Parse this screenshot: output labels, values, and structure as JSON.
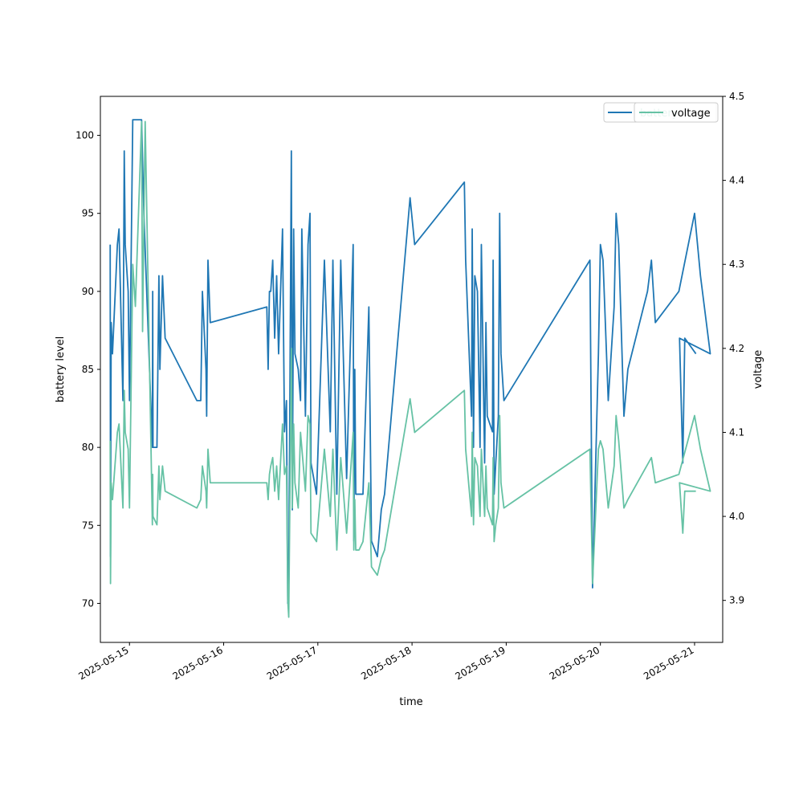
{
  "chart_data": {
    "type": "line",
    "xlabel": "time",
    "ylabel_left": "battery level",
    "ylabel_right": "voltage",
    "x_tick_labels": [
      "2025-05-15",
      "2025-05-16",
      "2025-05-17",
      "2025-05-18",
      "2025-05-19",
      "2025-05-20",
      "2025-05-21"
    ],
    "y_left_ticks": [
      70,
      75,
      80,
      85,
      90,
      95,
      100
    ],
    "y_left_lim": [
      67.5,
      102.5
    ],
    "y_right_ticks": [
      3.9,
      4.0,
      4.1,
      4.2,
      4.3,
      4.4,
      4.5
    ],
    "y_right_lim": [
      3.85,
      4.5
    ],
    "x_lim": [
      "2025-05-14 16:35",
      "2025-05-21 07:10"
    ],
    "legend": {
      "placement": "top-right",
      "entries": [
        "battery",
        "voltage"
      ]
    },
    "colors": {
      "battery": "#1f77b4",
      "voltage": "#66c2a5"
    },
    "series": [
      {
        "name": "battery",
        "axis": "left",
        "points": [
          [
            "2025-05-14 19:05",
            93
          ],
          [
            "2025-05-14 19:10",
            73
          ],
          [
            "2025-05-14 19:20",
            88
          ],
          [
            "2025-05-14 19:40",
            86
          ],
          [
            "2025-05-14 20:55",
            93
          ],
          [
            "2025-05-14 21:20",
            94
          ],
          [
            "2025-05-14 22:20",
            83
          ],
          [
            "2025-05-14 22:40",
            99
          ],
          [
            "2025-05-14 22:55",
            93
          ],
          [
            "2025-05-14 23:40",
            90
          ],
          [
            "2025-05-15 00:00",
            83
          ],
          [
            "2025-05-15 00:50",
            101
          ],
          [
            "2025-05-15 03:05",
            101
          ],
          [
            "2025-05-15 03:40",
            95
          ],
          [
            "2025-05-15 05:50",
            80
          ],
          [
            "2025-05-15 05:55",
            90
          ],
          [
            "2025-05-15 06:00",
            80
          ],
          [
            "2025-05-15 07:00",
            80
          ],
          [
            "2025-05-15 07:30",
            91
          ],
          [
            "2025-05-15 07:45",
            85
          ],
          [
            "2025-05-15 08:25",
            91
          ],
          [
            "2025-05-15 09:05",
            87
          ],
          [
            "2025-05-15 17:10",
            83
          ],
          [
            "2025-05-15 18:10",
            83
          ],
          [
            "2025-05-15 18:35",
            90
          ],
          [
            "2025-05-15 19:30",
            85
          ],
          [
            "2025-05-15 19:40",
            82
          ],
          [
            "2025-05-15 20:00",
            92
          ],
          [
            "2025-05-15 20:35",
            88
          ],
          [
            "2025-05-16 11:00",
            89
          ],
          [
            "2025-05-16 11:20",
            85
          ],
          [
            "2025-05-16 11:40",
            90
          ],
          [
            "2025-05-16 12:00",
            90
          ],
          [
            "2025-05-16 12:30",
            92
          ],
          [
            "2025-05-16 13:00",
            87
          ],
          [
            "2025-05-16 13:30",
            91
          ],
          [
            "2025-05-16 14:00",
            86
          ],
          [
            "2025-05-16 15:00",
            94
          ],
          [
            "2025-05-16 15:30",
            81
          ],
          [
            "2025-05-16 16:00",
            83
          ],
          [
            "2025-05-16 16:20",
            70
          ],
          [
            "2025-05-16 16:35",
            71
          ],
          [
            "2025-05-16 17:15",
            99
          ],
          [
            "2025-05-16 17:30",
            76
          ],
          [
            "2025-05-16 17:50",
            94
          ],
          [
            "2025-05-16 18:10",
            86
          ],
          [
            "2025-05-16 19:00",
            85
          ],
          [
            "2025-05-16 19:35",
            83
          ],
          [
            "2025-05-16 19:55",
            94
          ],
          [
            "2025-05-16 20:50",
            82
          ],
          [
            "2025-05-16 21:30",
            93
          ],
          [
            "2025-05-16 22:00",
            95
          ],
          [
            "2025-05-16 22:15",
            79
          ],
          [
            "2025-05-16 23:40",
            77
          ],
          [
            "2025-05-17 01:40",
            92
          ],
          [
            "2025-05-17 03:10",
            81
          ],
          [
            "2025-05-17 03:50",
            92
          ],
          [
            "2025-05-17 04:50",
            77
          ],
          [
            "2025-05-17 05:50",
            92
          ],
          [
            "2025-05-17 07:20",
            78
          ],
          [
            "2025-05-17 09:00",
            93
          ],
          [
            "2025-05-17 09:10",
            74
          ],
          [
            "2025-05-17 09:25",
            85
          ],
          [
            "2025-05-17 09:40",
            77
          ],
          [
            "2025-05-17 10:30",
            77
          ],
          [
            "2025-05-17 11:30",
            77
          ],
          [
            "2025-05-17 13:00",
            89
          ],
          [
            "2025-05-17 13:40",
            74
          ],
          [
            "2025-05-17 15:10",
            73
          ],
          [
            "2025-05-17 16:10",
            76
          ],
          [
            "2025-05-17 17:00",
            77
          ],
          [
            "2025-05-17 23:30",
            96
          ],
          [
            "2025-05-18 00:40",
            93
          ],
          [
            "2025-05-18 13:20",
            97
          ],
          [
            "2025-05-18 13:40",
            92
          ],
          [
            "2025-05-18 15:10",
            82
          ],
          [
            "2025-05-18 15:20",
            94
          ],
          [
            "2025-05-18 15:40",
            80
          ],
          [
            "2025-05-18 16:00",
            91
          ],
          [
            "2025-05-18 16:40",
            90
          ],
          [
            "2025-05-18 17:20",
            80
          ],
          [
            "2025-05-18 17:40",
            93
          ],
          [
            "2025-05-18 18:30",
            79
          ],
          [
            "2025-05-18 18:50",
            88
          ],
          [
            "2025-05-18 19:10",
            82
          ],
          [
            "2025-05-18 20:30",
            81
          ],
          [
            "2025-05-18 20:40",
            92
          ],
          [
            "2025-05-18 20:55",
            77
          ],
          [
            "2025-05-18 21:20",
            79
          ],
          [
            "2025-05-18 22:00",
            82
          ],
          [
            "2025-05-18 22:20",
            95
          ],
          [
            "2025-05-18 22:40",
            86
          ],
          [
            "2025-05-18 23:25",
            83
          ],
          [
            "2025-05-19 21:20",
            92
          ],
          [
            "2025-05-19 22:00",
            71
          ],
          [
            "2025-05-19 23:30",
            86
          ],
          [
            "2025-05-20 00:00",
            93
          ],
          [
            "2025-05-20 00:40",
            92
          ],
          [
            "2025-05-20 02:00",
            83
          ],
          [
            "2025-05-20 03:30",
            89
          ],
          [
            "2025-05-20 04:00",
            95
          ],
          [
            "2025-05-20 04:40",
            93
          ],
          [
            "2025-05-20 06:00",
            82
          ],
          [
            "2025-05-20 07:00",
            85
          ],
          [
            "2025-05-20 12:00",
            90
          ],
          [
            "2025-05-20 13:00",
            92
          ],
          [
            "2025-05-20 14:00",
            88
          ],
          [
            "2025-05-20 20:00",
            90
          ],
          [
            "2025-05-21 00:00",
            95
          ],
          [
            "2025-05-21 01:30",
            91
          ],
          [
            "2025-05-21 04:00",
            86
          ],
          [
            "2025-05-20 20:10",
            87
          ],
          [
            "2025-05-20 21:00",
            79
          ],
          [
            "2025-05-20 21:30",
            87
          ],
          [
            "2025-05-21 00:20",
            86
          ]
        ]
      },
      {
        "name": "voltage",
        "axis": "right",
        "points": [
          [
            "2025-05-14 19:05",
            4.09
          ],
          [
            "2025-05-14 19:10",
            3.92
          ],
          [
            "2025-05-14 19:20",
            4.04
          ],
          [
            "2025-05-14 19:40",
            4.02
          ],
          [
            "2025-05-14 20:55",
            4.1
          ],
          [
            "2025-05-14 21:20",
            4.11
          ],
          [
            "2025-05-14 22:20",
            4.01
          ],
          [
            "2025-05-14 22:40",
            4.15
          ],
          [
            "2025-05-14 22:55",
            4.1
          ],
          [
            "2025-05-14 23:40",
            4.08
          ],
          [
            "2025-05-15 00:00",
            4.01
          ],
          [
            "2025-05-15 00:50",
            4.3
          ],
          [
            "2025-05-15 01:30",
            4.25
          ],
          [
            "2025-05-15 03:05",
            4.47
          ],
          [
            "2025-05-15 03:20",
            4.22
          ],
          [
            "2025-05-15 04:00",
            4.47
          ],
          [
            "2025-05-15 05:50",
            3.99
          ],
          [
            "2025-05-15 05:55",
            4.05
          ],
          [
            "2025-05-15 06:00",
            4.0
          ],
          [
            "2025-05-15 07:00",
            3.99
          ],
          [
            "2025-05-15 07:30",
            4.06
          ],
          [
            "2025-05-15 07:45",
            4.02
          ],
          [
            "2025-05-15 08:25",
            4.06
          ],
          [
            "2025-05-15 09:05",
            4.03
          ],
          [
            "2025-05-15 17:10",
            4.01
          ],
          [
            "2025-05-15 18:10",
            4.02
          ],
          [
            "2025-05-15 18:35",
            4.06
          ],
          [
            "2025-05-15 19:30",
            4.03
          ],
          [
            "2025-05-15 19:40",
            4.01
          ],
          [
            "2025-05-15 20:00",
            4.08
          ],
          [
            "2025-05-15 20:35",
            4.04
          ],
          [
            "2025-05-16 11:00",
            4.04
          ],
          [
            "2025-05-16 11:20",
            4.02
          ],
          [
            "2025-05-16 11:40",
            4.05
          ],
          [
            "2025-05-16 12:00",
            4.06
          ],
          [
            "2025-05-16 12:30",
            4.07
          ],
          [
            "2025-05-16 13:00",
            4.03
          ],
          [
            "2025-05-16 13:30",
            4.06
          ],
          [
            "2025-05-16 14:00",
            4.02
          ],
          [
            "2025-05-16 15:00",
            4.11
          ],
          [
            "2025-05-16 15:30",
            4.05
          ],
          [
            "2025-05-16 16:00",
            4.06
          ],
          [
            "2025-05-16 16:20",
            3.9
          ],
          [
            "2025-05-16 16:35",
            3.88
          ],
          [
            "2025-05-16 17:15",
            4.2
          ],
          [
            "2025-05-16 17:30",
            4.01
          ],
          [
            "2025-05-16 17:50",
            4.11
          ],
          [
            "2025-05-16 18:10",
            4.04
          ],
          [
            "2025-05-16 19:00",
            4.01
          ],
          [
            "2025-05-16 19:35",
            4.1
          ],
          [
            "2025-05-16 20:50",
            4.03
          ],
          [
            "2025-05-16 21:30",
            4.12
          ],
          [
            "2025-05-16 22:00",
            4.11
          ],
          [
            "2025-05-16 22:15",
            3.98
          ],
          [
            "2025-05-16 23:40",
            3.97
          ],
          [
            "2025-05-17 01:40",
            4.08
          ],
          [
            "2025-05-17 03:10",
            4.0
          ],
          [
            "2025-05-17 03:50",
            4.08
          ],
          [
            "2025-05-17 04:50",
            3.96
          ],
          [
            "2025-05-17 05:50",
            4.07
          ],
          [
            "2025-05-17 07:20",
            3.98
          ],
          [
            "2025-05-17 09:00",
            4.1
          ],
          [
            "2025-05-17 09:10",
            3.96
          ],
          [
            "2025-05-17 09:25",
            4.02
          ],
          [
            "2025-05-17 09:40",
            3.96
          ],
          [
            "2025-05-17 10:30",
            3.96
          ],
          [
            "2025-05-17 11:30",
            3.97
          ],
          [
            "2025-05-17 13:00",
            4.04
          ],
          [
            "2025-05-17 13:40",
            3.94
          ],
          [
            "2025-05-17 15:10",
            3.93
          ],
          [
            "2025-05-17 16:10",
            3.95
          ],
          [
            "2025-05-17 17:00",
            3.96
          ],
          [
            "2025-05-17 23:30",
            4.14
          ],
          [
            "2025-05-18 00:40",
            4.1
          ],
          [
            "2025-05-18 13:20",
            4.15
          ],
          [
            "2025-05-18 13:40",
            4.08
          ],
          [
            "2025-05-18 15:10",
            4.0
          ],
          [
            "2025-05-18 15:20",
            4.1
          ],
          [
            "2025-05-18 15:40",
            3.99
          ],
          [
            "2025-05-18 16:00",
            4.07
          ],
          [
            "2025-05-18 16:40",
            4.06
          ],
          [
            "2025-05-18 17:20",
            4.0
          ],
          [
            "2025-05-18 17:40",
            4.08
          ],
          [
            "2025-05-18 18:30",
            4.0
          ],
          [
            "2025-05-18 18:50",
            4.06
          ],
          [
            "2025-05-18 19:10",
            4.01
          ],
          [
            "2025-05-18 20:30",
            3.99
          ],
          [
            "2025-05-18 20:40",
            4.07
          ],
          [
            "2025-05-18 20:55",
            3.97
          ],
          [
            "2025-05-18 21:20",
            3.99
          ],
          [
            "2025-05-18 22:00",
            4.01
          ],
          [
            "2025-05-18 22:20",
            4.12
          ],
          [
            "2025-05-18 22:40",
            4.04
          ],
          [
            "2025-05-18 23:25",
            4.01
          ],
          [
            "2025-05-19 21:20",
            4.08
          ],
          [
            "2025-05-19 22:00",
            3.92
          ],
          [
            "2025-05-19 23:30",
            4.08
          ],
          [
            "2025-05-20 00:00",
            4.09
          ],
          [
            "2025-05-20 00:40",
            4.08
          ],
          [
            "2025-05-20 02:00",
            4.01
          ],
          [
            "2025-05-20 03:30",
            4.06
          ],
          [
            "2025-05-20 04:00",
            4.12
          ],
          [
            "2025-05-20 04:40",
            4.09
          ],
          [
            "2025-05-20 06:00",
            4.01
          ],
          [
            "2025-05-20 07:00",
            4.02
          ],
          [
            "2025-05-20 13:00",
            4.07
          ],
          [
            "2025-05-20 14:00",
            4.04
          ],
          [
            "2025-05-20 20:00",
            4.05
          ],
          [
            "2025-05-21 00:00",
            4.12
          ],
          [
            "2025-05-21 01:30",
            4.08
          ],
          [
            "2025-05-21 04:00",
            4.03
          ],
          [
            "2025-05-20 20:10",
            4.04
          ],
          [
            "2025-05-20 21:00",
            3.98
          ],
          [
            "2025-05-20 21:30",
            4.03
          ],
          [
            "2025-05-21 00:20",
            4.03
          ]
        ]
      }
    ]
  }
}
